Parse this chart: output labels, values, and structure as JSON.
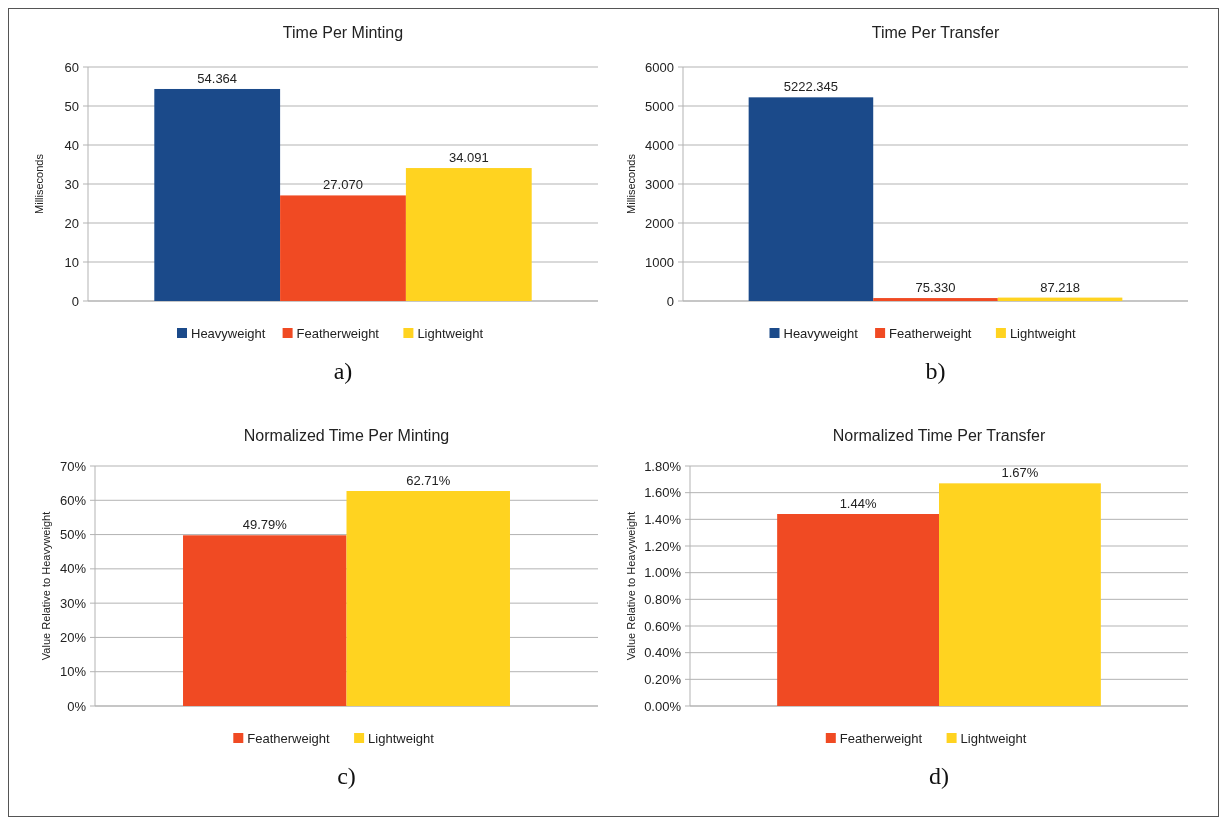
{
  "chart_data": [
    {
      "type": "bar",
      "title": "Time Per Minting",
      "ylabel": "Milliseconds",
      "categories": [
        null
      ],
      "series": [
        {
          "name": "Heavyweight",
          "color": "#1b4a8a",
          "values": [
            54.364
          ],
          "value_labels": [
            "54.364"
          ]
        },
        {
          "name": "Featherweight",
          "color": "#f04a23",
          "values": [
            27.07
          ],
          "value_labels": [
            "27.070"
          ]
        },
        {
          "name": "Lightweight",
          "color": "#ffd320",
          "values": [
            34.091
          ],
          "value_labels": [
            "34.091"
          ]
        }
      ],
      "ylim": [
        0,
        60
      ],
      "yticks": [
        0,
        10,
        20,
        30,
        40,
        50,
        60
      ],
      "grid": "y",
      "legend": "bottom",
      "annotations": [
        "a)"
      ]
    },
    {
      "type": "bar",
      "title": "Time Per Transfer",
      "ylabel": "Milliseconds",
      "categories": [
        null
      ],
      "series": [
        {
          "name": "Heavyweight",
          "color": "#1b4a8a",
          "values": [
            5222.345
          ],
          "value_labels": [
            "5222.345"
          ]
        },
        {
          "name": "Featherweight",
          "color": "#f04a23",
          "values": [
            75.33
          ],
          "value_labels": [
            "75.330"
          ]
        },
        {
          "name": "Lightweight",
          "color": "#ffd320",
          "values": [
            87.218
          ],
          "value_labels": [
            "87.218"
          ]
        }
      ],
      "ylim": [
        0,
        6000
      ],
      "yticks": [
        0,
        1000,
        2000,
        3000,
        4000,
        5000,
        6000
      ],
      "grid": "y",
      "legend": "bottom",
      "annotations": [
        "b)"
      ]
    },
    {
      "type": "bar",
      "title": "Normalized Time Per Minting",
      "ylabel": "Value Relative to Heavyweight",
      "categories": [
        null
      ],
      "series": [
        {
          "name": "Featherweight",
          "color": "#f04a23",
          "values": [
            49.79
          ],
          "value_labels": [
            "49.79%"
          ]
        },
        {
          "name": "Lightweight",
          "color": "#ffd320",
          "values": [
            62.71
          ],
          "value_labels": [
            "62.71%"
          ]
        }
      ],
      "ylim": [
        0,
        70
      ],
      "yticks": [
        {
          "value": 0,
          "label": "0%"
        },
        {
          "value": 10,
          "label": "10%"
        },
        {
          "value": 20,
          "label": "20%"
        },
        {
          "value": 30,
          "label": "30%"
        },
        {
          "value": 40,
          "label": "40%"
        },
        {
          "value": 50,
          "label": "50%"
        },
        {
          "value": 60,
          "label": "60%"
        },
        {
          "value": 70,
          "label": "70%"
        }
      ],
      "grid": "y",
      "legend": "bottom",
      "annotations": [
        "c)"
      ]
    },
    {
      "type": "bar",
      "title": "Normalized Time Per Transfer",
      "ylabel": "Value Relative to Heavyweight",
      "categories": [
        null
      ],
      "series": [
        {
          "name": "Featherweight",
          "color": "#f04a23",
          "values": [
            1.44
          ],
          "value_labels": [
            "1.44%"
          ]
        },
        {
          "name": "Lightweight",
          "color": "#ffd320",
          "values": [
            1.67
          ],
          "value_labels": [
            "1.67%"
          ]
        }
      ],
      "ylim": [
        0,
        1.8
      ],
      "yticks": [
        {
          "value": 0,
          "label": "0.00%"
        },
        {
          "value": 0.2,
          "label": "0.20%"
        },
        {
          "value": 0.4,
          "label": "0.40%"
        },
        {
          "value": 0.6,
          "label": "0.60%"
        },
        {
          "value": 0.8,
          "label": "0.80%"
        },
        {
          "value": 1,
          "label": "1.00%"
        },
        {
          "value": 1.2,
          "label": "1.20%"
        },
        {
          "value": 1.4,
          "label": "1.40%"
        },
        {
          "value": 1.6,
          "label": "1.60%"
        },
        {
          "value": 1.8,
          "label": "1.80%"
        }
      ],
      "grid": "y",
      "legend": "bottom",
      "annotations": [
        "d)"
      ]
    }
  ]
}
